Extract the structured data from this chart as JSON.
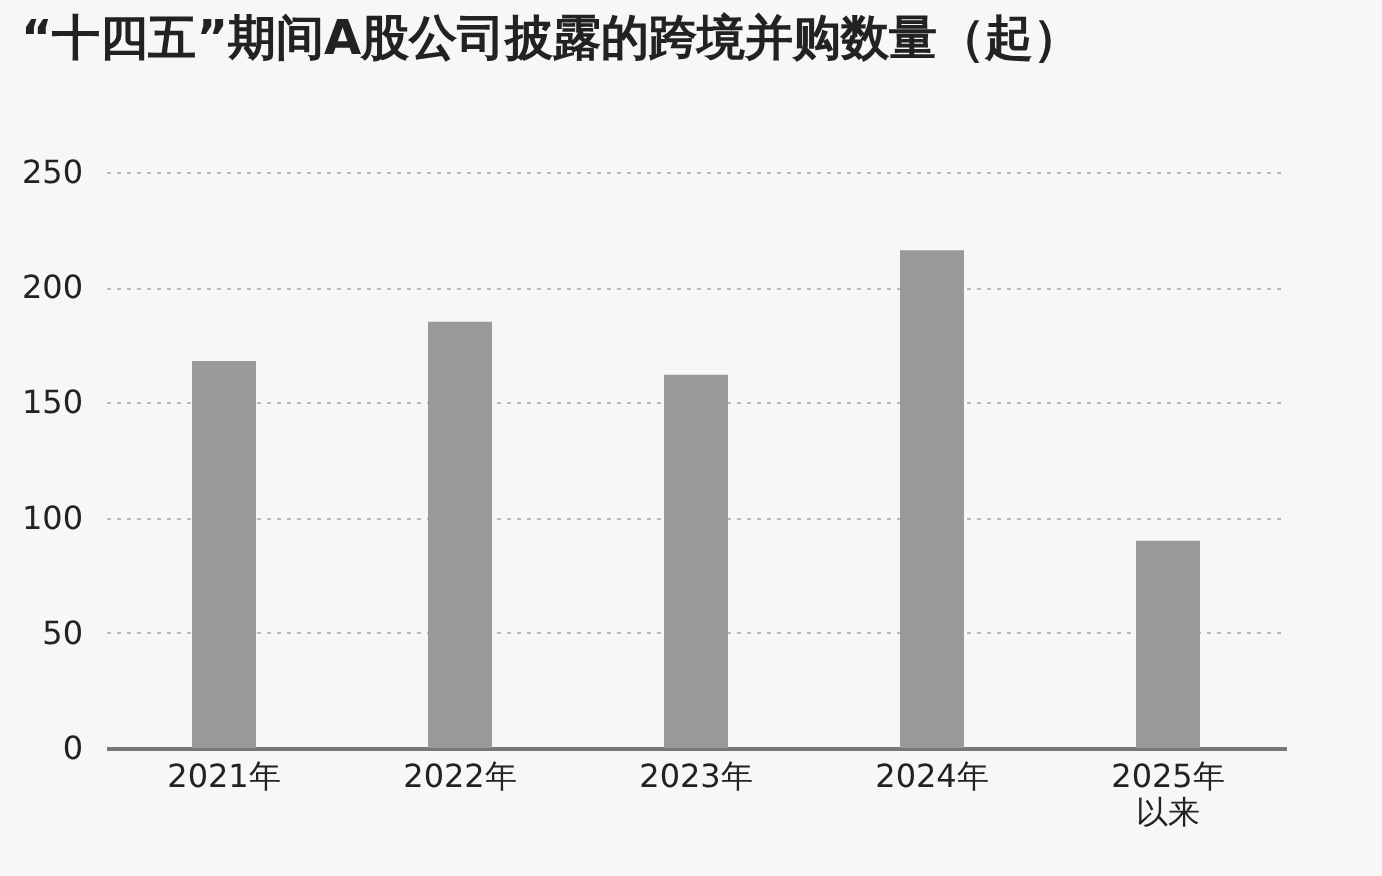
{
  "chart_data": {
    "type": "bar",
    "title": "“十四五”期间A股公司披露的跨境并购数量（起）",
    "categories": [
      "2021年",
      "2022年",
      "2023年",
      "2024年",
      "2025年以来"
    ],
    "values": [
      168,
      185,
      162,
      216,
      90
    ],
    "color": "#999999",
    "ylim": [
      0,
      250
    ],
    "yticks": [
      0,
      50,
      100,
      150,
      200,
      250
    ],
    "grid": "y"
  }
}
